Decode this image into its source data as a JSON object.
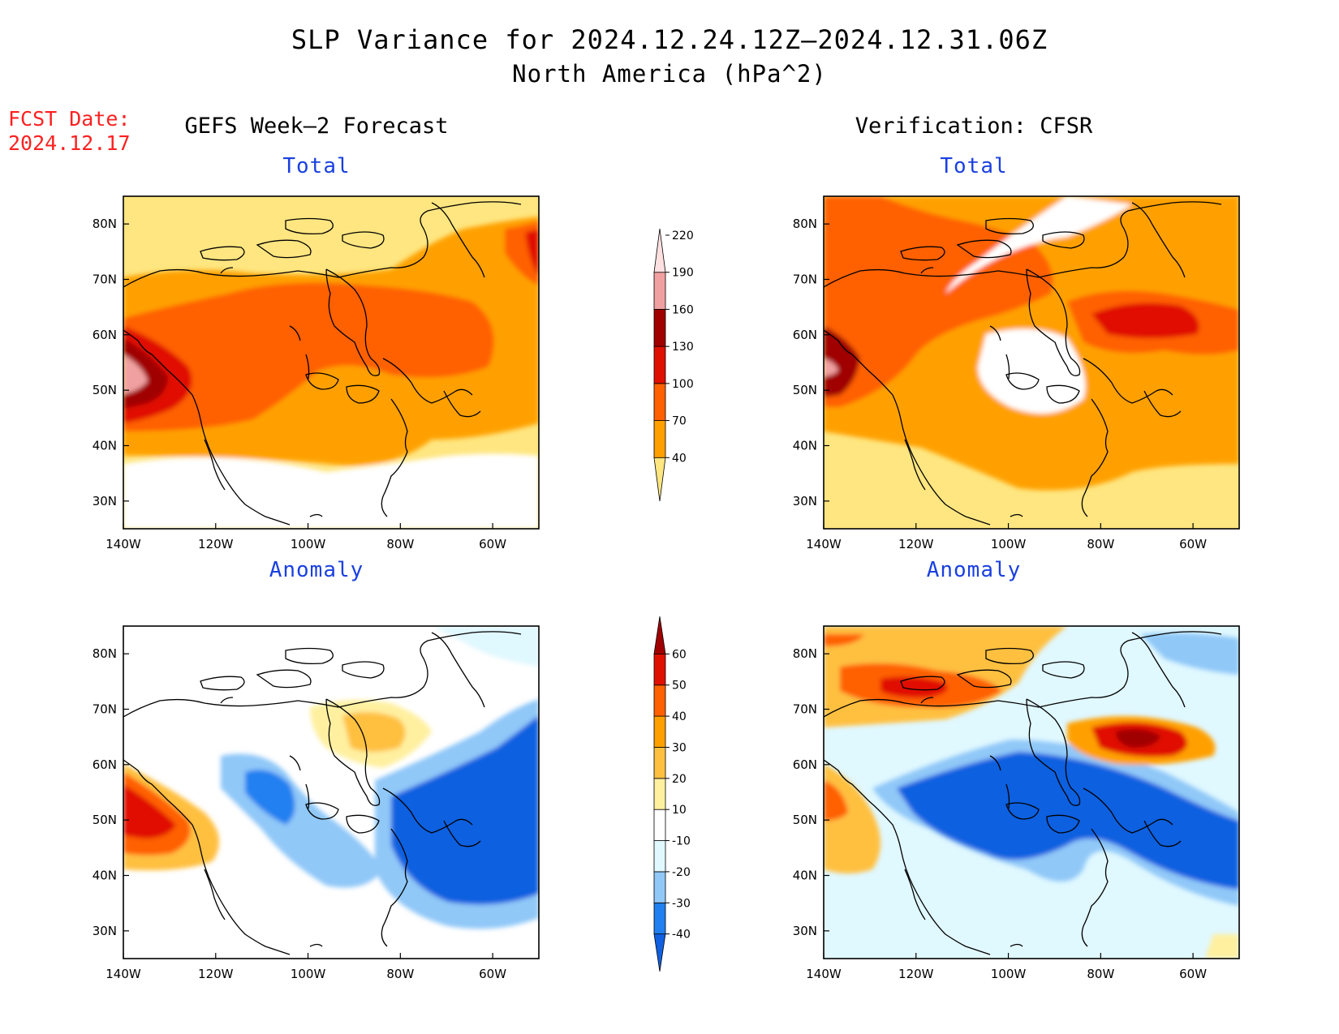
{
  "title": {
    "line1": "SLP Variance for 2024.12.24.12Z–2024.12.31.06Z",
    "line2": "North America (hPa^2)"
  },
  "fcst_date": {
    "label": "FCST Date:",
    "value": "2024.12.17"
  },
  "columns": {
    "left": "GEFS Week–2 Forecast",
    "right": "Verification: CFSR"
  },
  "panels": [
    {
      "id": "fc-total",
      "title": "Total"
    },
    {
      "id": "ver-total",
      "title": "Total"
    },
    {
      "id": "fc-anom",
      "title": "Anomaly"
    },
    {
      "id": "ver-anom",
      "title": "Anomaly"
    }
  ],
  "axes": {
    "lon_labels": [
      "140W",
      "120W",
      "100W",
      "80W",
      "60W"
    ],
    "lon_values": [
      -140,
      -120,
      -100,
      -80,
      -60
    ],
    "lat_labels": [
      "30N",
      "40N",
      "50N",
      "60N",
      "70N",
      "80N"
    ],
    "lat_values": [
      30,
      40,
      50,
      60,
      70,
      80
    ],
    "lon_range": [
      -140,
      -50
    ],
    "lat_range": [
      25,
      85
    ]
  },
  "colorbars": {
    "total": {
      "labels": [
        "40",
        "70",
        "100",
        "130",
        "160",
        "190",
        "220"
      ],
      "colors": [
        "#ffe680",
        "#ffa000",
        "#ff6000",
        "#e01000",
        "#a00000",
        "#f0a0a0",
        "#ffe0e0"
      ]
    },
    "anomaly": {
      "labels": [
        "-40",
        "-30",
        "-20",
        "-10",
        "10",
        "20",
        "30",
        "40",
        "50",
        "60"
      ],
      "colors": [
        "#1060e0",
        "#2080f0",
        "#90c8f8",
        "#e0f8ff",
        "#ffffff",
        "#fff0a0",
        "#ffc040",
        "#ffa000",
        "#ff6000",
        "#e01000",
        "#a00000"
      ]
    }
  }
}
